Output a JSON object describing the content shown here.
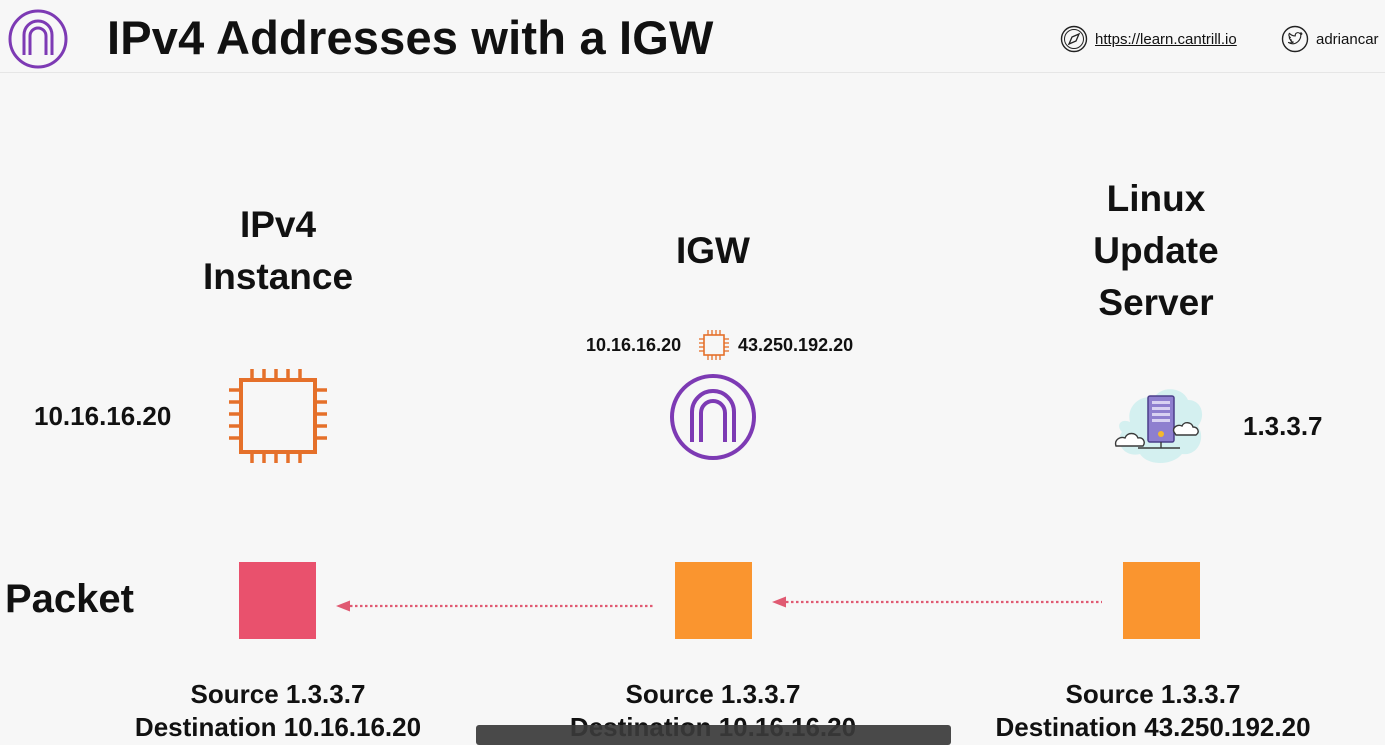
{
  "header": {
    "title": "IPv4 Addresses with a IGW",
    "website": "https://learn.cantrill.io",
    "twitter": "adriancar",
    "logo_icon": "igw-arch-logo-icon",
    "website_icon": "compass-icon",
    "twitter_icon": "twitter-bird-icon"
  },
  "columns": {
    "instance": {
      "heading_line1": "IPv4",
      "heading_line2": "Instance",
      "ip": "10.16.16.20",
      "icon": "ec2-chip-icon"
    },
    "igw": {
      "heading": "IGW",
      "private_ip": "10.16.16.20",
      "public_ip": "43.250.192.20",
      "icon": "internet-gateway-icon"
    },
    "server": {
      "heading_line1": "Linux",
      "heading_line2": "Update",
      "heading_line3": "Server",
      "ip": "1.3.3.7",
      "icon": "cloud-server-icon"
    }
  },
  "packet_row": {
    "label": "Packet",
    "packets": [
      {
        "source": "Source  1.3.3.7",
        "destination": "Destination 10.16.16.20",
        "color": "#e9516d"
      },
      {
        "source": "Source 1.3.3.7",
        "destination": "Destination 10.16.16.20",
        "color": "#fa952f"
      },
      {
        "source": "Source 1.3.3.7",
        "destination": "Destination 43.250.192.20",
        "color": "#fa952f"
      }
    ]
  },
  "colors": {
    "accent_purple": "#7d3ab4",
    "chip_orange": "#e5702a",
    "arrow_pink": "#e05a72"
  }
}
